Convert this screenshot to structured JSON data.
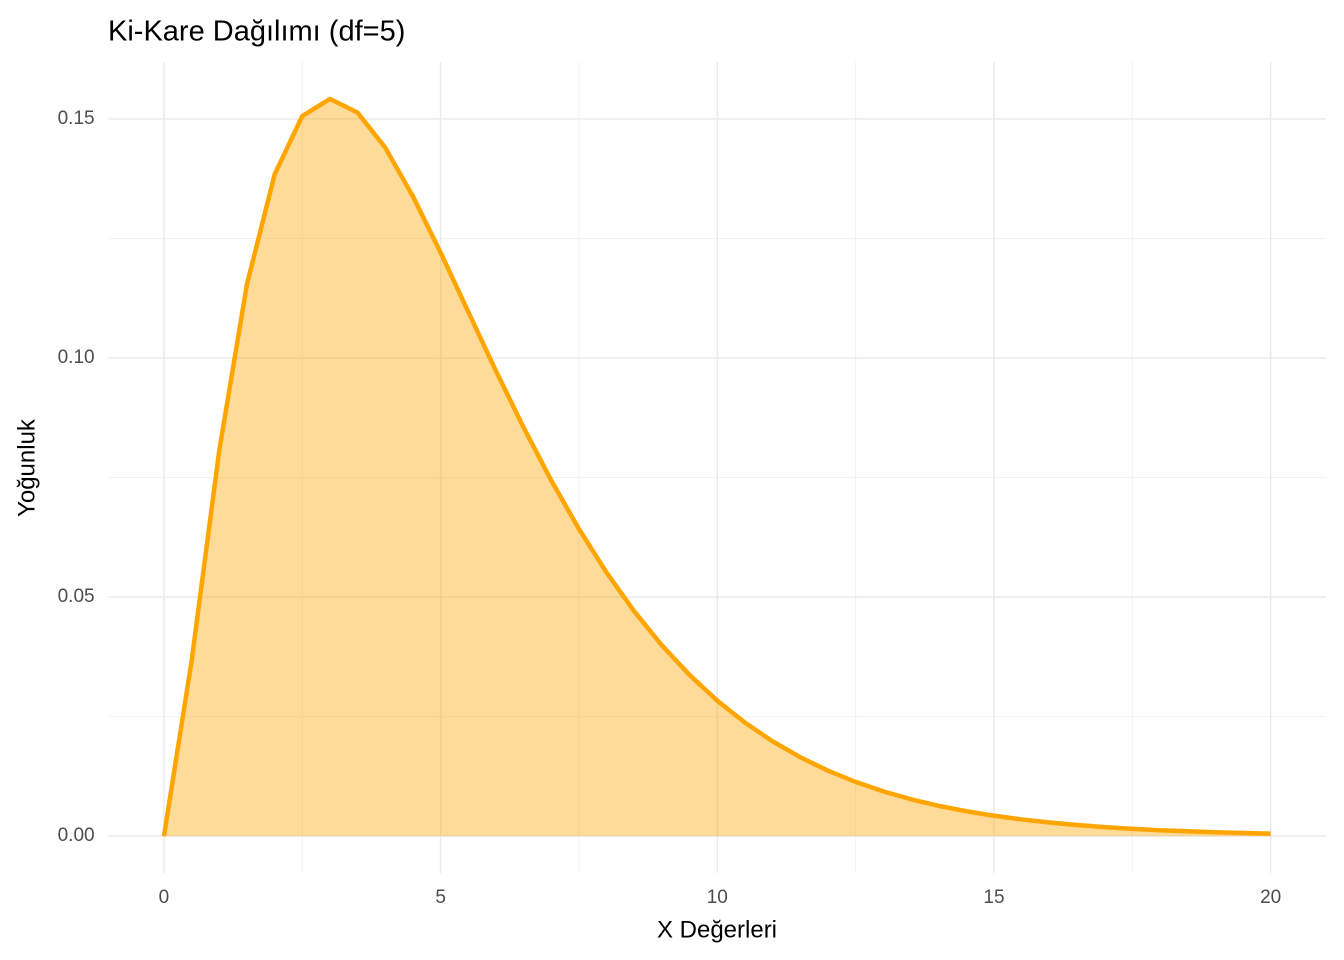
{
  "chart_data": {
    "type": "area",
    "title": "Ki-Kare Dağılımı (df=5)",
    "x_label": "X Değerleri",
    "y_label": "Yoğunluk",
    "x": [
      0,
      0.5,
      1,
      1.5,
      2,
      2.5,
      3,
      3.5,
      4,
      4.5,
      5,
      5.5,
      6,
      6.5,
      7,
      7.5,
      8,
      8.5,
      9,
      9.5,
      10,
      10.5,
      11,
      11.5,
      12,
      12.5,
      13,
      13.5,
      14,
      14.5,
      15,
      15.5,
      16,
      16.5,
      17,
      17.5,
      18,
      18.5,
      19,
      19.5,
      20
    ],
    "series": [
      {
        "name": "df=5",
        "color": "#FFA500",
        "values": [
          0,
          0.03662,
          0.08066,
          0.1154,
          0.13837,
          0.1506,
          0.15418,
          0.15131,
          0.14398,
          0.1338,
          0.12204,
          0.10965,
          0.0973,
          0.08545,
          0.07437,
          0.06424,
          0.05511,
          0.04701,
          0.03989,
          0.03369,
          0.02833,
          0.02374,
          0.01983,
          0.01651,
          0.0137,
          0.01135,
          0.00937,
          0.00772,
          0.00635,
          0.00521,
          0.00427,
          0.0035,
          0.00286,
          0.00233,
          0.0019,
          0.00154,
          0.00125,
          0.00102,
          0.00082,
          0.00067,
          0.00054
        ]
      }
    ],
    "xlim": [
      -1,
      21
    ],
    "ylim": [
      -0.0077,
      0.1619
    ],
    "xticks": [
      0,
      5,
      10,
      15,
      20
    ],
    "yticks": [
      {
        "value": 0,
        "label": "0.00"
      },
      {
        "value": 0.05,
        "label": "0.05"
      },
      {
        "value": 0.1,
        "label": "0.10"
      },
      {
        "value": 0.15,
        "label": "0.15"
      }
    ],
    "x_minor_ticks": [
      2.5,
      7.5,
      12.5,
      17.5
    ],
    "y_minor_ticks": [
      0.025,
      0.075,
      0.125
    ],
    "grid": true
  }
}
